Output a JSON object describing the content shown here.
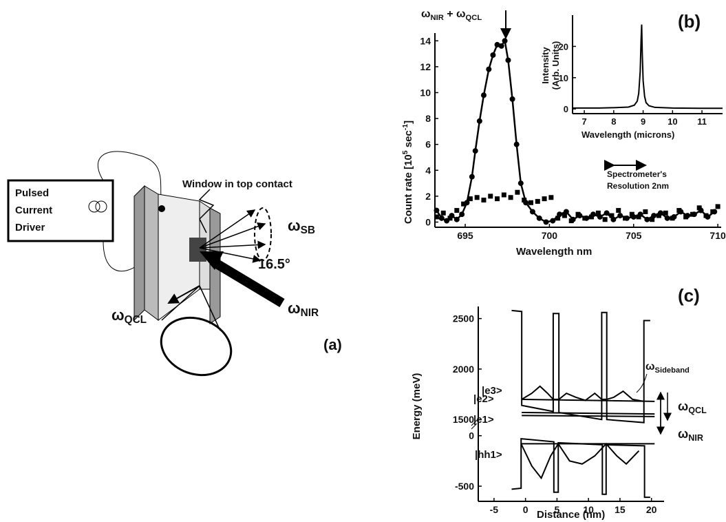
{
  "diagram": {
    "driver_label": [
      "Pulsed",
      "Current",
      "Driver"
    ],
    "window_label": "Window in top contact",
    "sb_label": [
      "ω",
      "SB"
    ],
    "angle_label": "16.5°",
    "qcl_label": [
      "ω",
      "QCL"
    ],
    "nir_label": [
      "ω",
      "NIR"
    ],
    "panel_label": "(a)"
  },
  "chart_data": [
    {
      "type": "line",
      "panel_label": "(b)",
      "peak_label": [
        "ω",
        "NIR",
        " + ω",
        "QCL"
      ],
      "resolution_label": [
        "Spectrometer's",
        "Resolution 2nm"
      ],
      "x_label": "Wavelength nm",
      "y_label": [
        "Count rate [10",
        "5",
        " sec",
        "-1",
        "]"
      ],
      "xlim": [
        693.2,
        710.2
      ],
      "ylim": [
        -0.4,
        14.6
      ],
      "xticks": [
        695,
        700,
        705,
        710
      ],
      "yticks": [
        0,
        2,
        4,
        6,
        8,
        10,
        12,
        14
      ],
      "series": [
        {
          "marker": "circle",
          "line": true,
          "color": "#000000",
          "x": [
            693.3,
            693.6,
            693.9,
            694.2,
            694.5,
            694.8,
            695.1,
            695.4,
            695.6,
            695.85,
            696.1,
            696.4,
            696.65,
            696.9,
            697.15,
            697.35,
            697.55,
            697.8,
            698.05,
            698.3,
            698.6,
            699.0,
            699.4,
            699.8,
            700.2,
            700.6,
            701.0,
            701.4,
            701.8,
            702.2,
            702.6,
            703.0,
            703.4,
            703.8,
            704.2,
            704.6,
            705.0,
            705.4,
            705.8,
            706.2,
            706.6,
            707.0,
            707.4,
            707.8,
            708.2,
            708.6,
            709.0,
            709.4,
            709.8
          ],
          "values": [
            0.9,
            0.3,
            0.1,
            0.5,
            0.2,
            0.6,
            1.5,
            3.5,
            5.5,
            7.8,
            9.8,
            11.8,
            12.9,
            13.7,
            13.6,
            14.0,
            12.5,
            9.5,
            6.0,
            3.0,
            1.5,
            0.8,
            0.3,
            0.0,
            0.1,
            0.6,
            0.8,
            0.2,
            0.5,
            0.3,
            0.6,
            0.4,
            0.7,
            0.2,
            0.5,
            0.3,
            0.4,
            0.6,
            0.2,
            0.5,
            0.7,
            0.3,
            0.4,
            0.8,
            0.5,
            0.6,
            0.9,
            0.4,
            0.8
          ]
        },
        {
          "marker": "square",
          "line": false,
          "color": "#000000",
          "x": [
            693.3,
            693.7,
            694.1,
            694.5,
            694.9,
            695.3,
            695.7,
            696.1,
            696.5,
            696.9,
            697.3,
            697.7,
            698.1,
            698.5,
            698.9,
            699.3,
            699.7,
            700.1,
            700.5,
            700.9,
            701.3,
            701.7,
            702.1,
            702.5,
            702.9,
            703.3,
            703.7,
            704.1,
            704.5,
            704.9,
            705.3,
            705.7,
            706.1,
            706.5,
            706.9,
            707.3,
            707.7,
            708.1,
            708.5,
            708.9,
            709.3,
            709.7,
            710.0
          ],
          "values": [
            0.4,
            0.7,
            0.3,
            0.9,
            1.4,
            1.8,
            1.9,
            1.7,
            2.0,
            1.8,
            2.1,
            1.9,
            2.3,
            1.7,
            1.5,
            1.6,
            1.8,
            1.9,
            0.3,
            0.5,
            0.1,
            0.6,
            0.3,
            0.4,
            0.7,
            0.2,
            0.5,
            0.9,
            0.3,
            0.6,
            0.4,
            0.8,
            0.2,
            0.5,
            0.7,
            0.3,
            0.9,
            0.4,
            0.6,
            1.1,
            0.5,
            0.8,
            1.2
          ]
        }
      ]
    },
    {
      "type": "line",
      "x_label": "Wavelength (microns)",
      "y_label": [
        "Intensity",
        "(Arb. Units)"
      ],
      "xlim": [
        6.6,
        11.7
      ],
      "ylim": [
        -1.5,
        30
      ],
      "xticks": [
        7,
        8,
        9,
        10,
        11
      ],
      "yticks": [
        0,
        10,
        20
      ],
      "series": [
        {
          "marker": "none",
          "line": true,
          "color": "#000000",
          "x": [
            6.6,
            7.5,
            8.0,
            8.5,
            8.7,
            8.8,
            8.85,
            8.9,
            8.93,
            8.95,
            8.97,
            9.0,
            9.05,
            9.1,
            9.2,
            9.4,
            10.0,
            11.0,
            11.7
          ],
          "values": [
            0.3,
            0.3,
            0.4,
            0.6,
            1.2,
            2.5,
            5,
            12,
            22,
            27,
            18,
            9,
            4,
            2,
            1,
            0.5,
            0.3,
            0.2,
            0.2
          ]
        }
      ]
    },
    {
      "type": "line",
      "panel_label": "(c)",
      "x_label": "Distance (nm)",
      "y_label": "Energy (meV)",
      "xlim": [
        -7.5,
        22
      ],
      "ylim": [
        -650,
        2620
      ],
      "ybreak": [
        100,
        1440
      ],
      "xticks": [
        -5,
        0,
        5,
        10,
        15,
        20
      ],
      "yticks": [
        -500,
        0,
        1500,
        2000,
        2500
      ],
      "state_labels": [
        "|e3>",
        "|e2>",
        "|e1>",
        "|hh1>"
      ],
      "sideband_label": [
        "ω",
        "Sideband"
      ],
      "qcl_label": [
        "ω",
        "QCL"
      ],
      "nir_label": [
        "ω",
        "NIR"
      ],
      "series": [
        {
          "marker": "none",
          "line": true,
          "color": "#000000",
          "x": [
            -2.2,
            -0.6,
            -0.6,
            4.4,
            4.4,
            5.3,
            5.3,
            12.1,
            12.1,
            12.9,
            12.9,
            18.8,
            18.8,
            19.8
          ],
          "values": [
            2580,
            2570,
            1640,
            1580,
            2550,
            2550,
            1570,
            1500,
            2560,
            2560,
            1500,
            1470,
            2480,
            2480
          ]
        },
        {
          "marker": "none",
          "line": true,
          "color": "#000000",
          "x": [
            -2.2,
            -0.7,
            -0.7,
            4.5,
            4.5,
            5.2,
            5.2,
            12.2,
            12.2,
            12.8,
            12.8,
            18.9,
            18.9,
            19.8
          ],
          "values": [
            -530,
            -520,
            -30,
            -60,
            -560,
            -560,
            -70,
            -90,
            -580,
            -580,
            -90,
            -100,
            -610,
            -610
          ]
        },
        {
          "marker": "none",
          "line": true,
          "color": "#000000",
          "x": [
            -0.6,
            20.5
          ],
          "values": [
            1700,
            1680
          ]
        },
        {
          "marker": "none",
          "line": true,
          "color": "#000000",
          "x": [
            -0.6,
            20.5
          ],
          "values": [
            1570,
            1555
          ]
        },
        {
          "marker": "none",
          "line": true,
          "color": "#000000",
          "x": [
            -0.6,
            20.5
          ],
          "values": [
            1540,
            1530
          ]
        },
        {
          "marker": "none",
          "line": true,
          "color": "#000000",
          "x": [
            -0.7,
            20.5
          ],
          "values": [
            -80,
            -80
          ]
        },
        {
          "marker": "none",
          "line": true,
          "color": "#000000",
          "x": [
            -0.6,
            1,
            2.3,
            3.5,
            4.4,
            5.3,
            6.5,
            8,
            9.5,
            11,
            12.1,
            12.9,
            14,
            15.5,
            17,
            18.8
          ],
          "values": [
            1700,
            1760,
            1830,
            1760,
            1700,
            1700,
            1760,
            1720,
            1690,
            1760,
            1700,
            1700,
            1720,
            1780,
            1700,
            1680
          ]
        },
        {
          "marker": "none",
          "line": true,
          "color": "#000000",
          "x": [
            -0.7,
            1,
            2.5,
            4,
            5.2,
            7,
            9,
            11,
            12.8,
            14.5,
            16,
            18
          ],
          "values": [
            -80,
            -300,
            -420,
            -200,
            -80,
            -250,
            -280,
            -200,
            -80,
            -200,
            -280,
            -150
          ]
        }
      ]
    }
  ]
}
